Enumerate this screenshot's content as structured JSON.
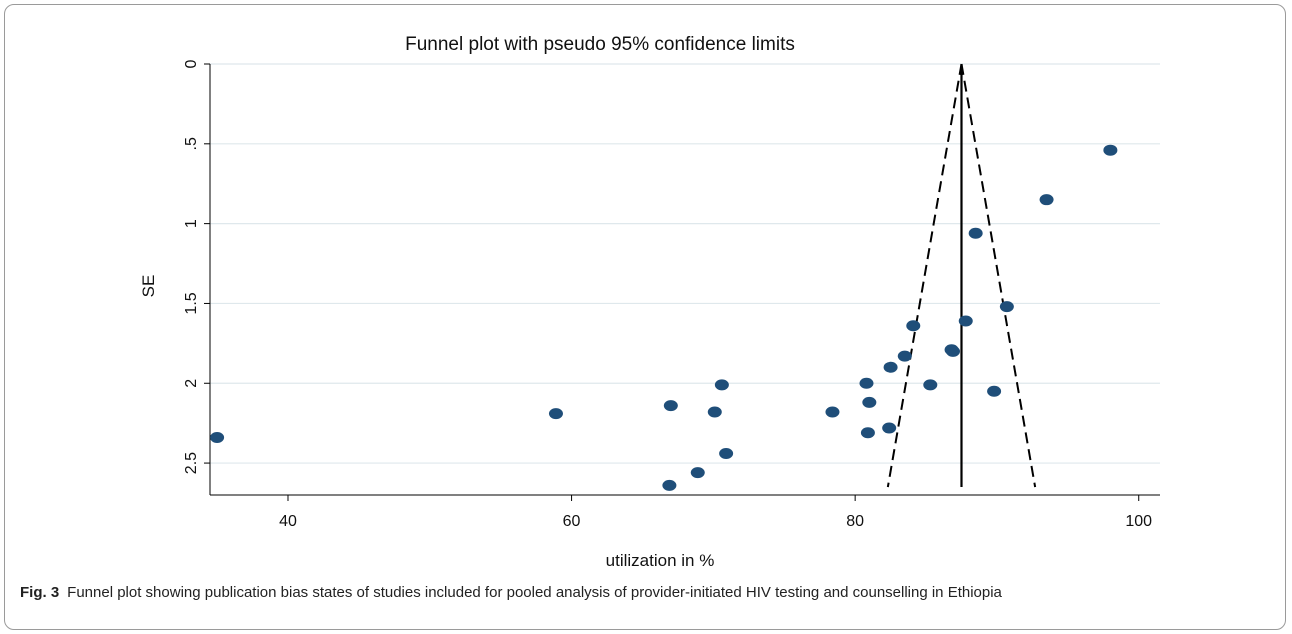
{
  "chart_data": {
    "type": "scatter",
    "title": "Funnel plot with pseudo 95% confidence limits",
    "xlabel": "utilization in %",
    "ylabel": "SE",
    "xlim": [
      34.5,
      101.5
    ],
    "ylim": [
      0,
      2.7
    ],
    "y_reversed": true,
    "xticks": [
      40,
      60,
      80,
      100
    ],
    "xtick_labels": [
      "40",
      "60",
      "80",
      "100"
    ],
    "yticks": [
      0,
      0.5,
      1,
      1.5,
      2,
      2.5
    ],
    "ytick_labels": [
      "0",
      ".5",
      "1",
      "1.5",
      "2",
      "2.5"
    ],
    "grid": true,
    "pooled_estimate": 87.5,
    "ci_z": 1.96,
    "ci_se_max": 2.65,
    "colors": {
      "points": "#1f4e79",
      "lines": "#000000",
      "grid": "#dfe8ec"
    },
    "points": [
      {
        "x": 35.0,
        "y": 2.34
      },
      {
        "x": 58.9,
        "y": 2.19
      },
      {
        "x": 67.0,
        "y": 2.14
      },
      {
        "x": 66.9,
        "y": 2.64
      },
      {
        "x": 68.9,
        "y": 2.56
      },
      {
        "x": 70.1,
        "y": 2.18
      },
      {
        "x": 70.6,
        "y": 2.01
      },
      {
        "x": 70.9,
        "y": 2.44
      },
      {
        "x": 78.4,
        "y": 2.18
      },
      {
        "x": 80.8,
        "y": 2.0
      },
      {
        "x": 81.0,
        "y": 2.12
      },
      {
        "x": 80.9,
        "y": 2.31
      },
      {
        "x": 82.4,
        "y": 2.28
      },
      {
        "x": 82.5,
        "y": 1.9
      },
      {
        "x": 83.5,
        "y": 1.83
      },
      {
        "x": 84.1,
        "y": 1.64
      },
      {
        "x": 85.3,
        "y": 2.01
      },
      {
        "x": 86.8,
        "y": 1.79
      },
      {
        "x": 86.9,
        "y": 1.8
      },
      {
        "x": 87.8,
        "y": 1.61
      },
      {
        "x": 88.5,
        "y": 1.06
      },
      {
        "x": 89.8,
        "y": 2.05
      },
      {
        "x": 90.7,
        "y": 1.52
      },
      {
        "x": 93.5,
        "y": 0.85
      },
      {
        "x": 98.0,
        "y": 0.54
      }
    ]
  },
  "caption": {
    "label": "Fig. 3",
    "text": "Funnel plot showing publication bias states of studies included for pooled analysis of provider-initiated HIV testing and counselling in Ethiopia"
  }
}
